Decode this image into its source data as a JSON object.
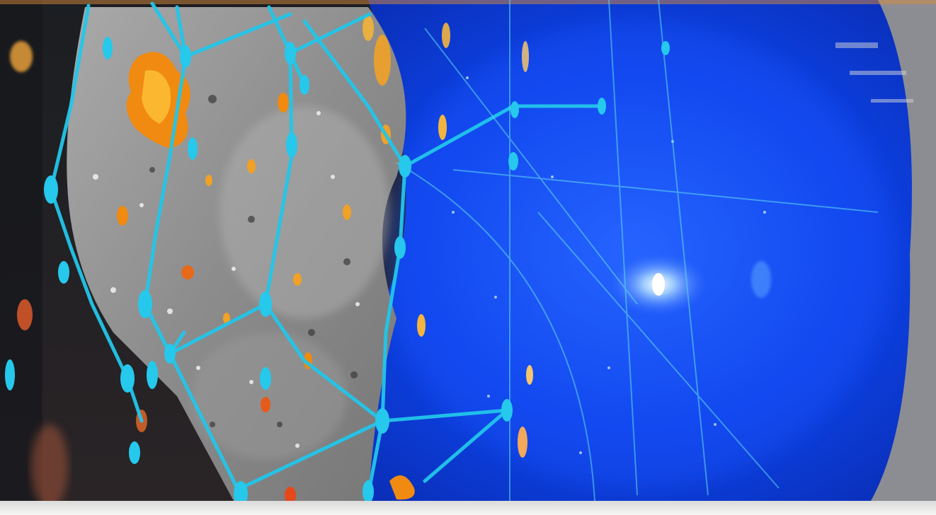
{
  "image": {
    "description_tags": [
      "false-color",
      "tissue-section",
      "cellular-network"
    ],
    "colors": {
      "left_region": "#121417",
      "gray_tissue": "#8e8e8e",
      "blue_region": "#0a3fe6",
      "network_lines": "#21c5e8",
      "hotspots": "#f07d12",
      "bright_spot": "#ffffff"
    }
  }
}
